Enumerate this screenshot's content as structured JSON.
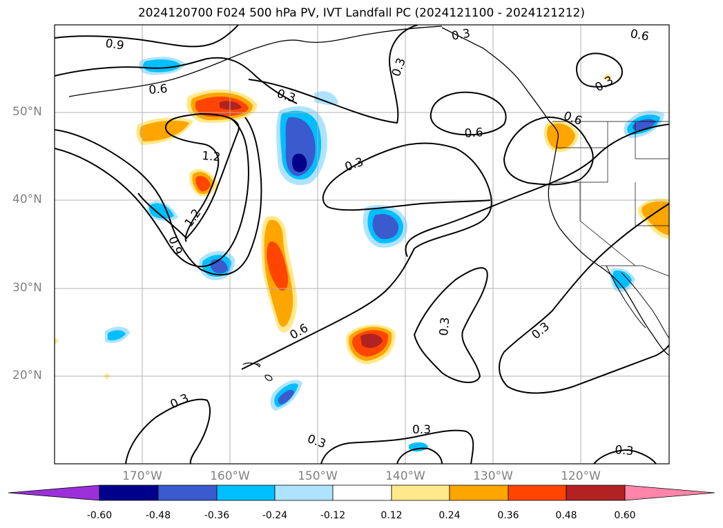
{
  "title": "2024120700 F024 500 hPa PV, IVT Landfall PC (2024121100 - 2024121212)",
  "map": {
    "projection": "lat-lon",
    "lat_range": [
      10,
      60
    ],
    "lon_range": [
      -180,
      -110
    ],
    "gridlines": true,
    "lat_ticks": [
      "50°N",
      "40°N",
      "30°N",
      "20°N"
    ],
    "lon_ticks": [
      "170°W",
      "160°W",
      "150°W",
      "140°W",
      "130°W",
      "120°W"
    ],
    "contour_labels": [
      "0.9",
      "0.6",
      "0.3",
      "1.2",
      "1.2",
      "0.9",
      "0.3",
      "0.6",
      "0.3",
      "0.6",
      "0.3",
      "0.3",
      "0.3",
      "0.3",
      "0.3",
      "0.3",
      "0.6",
      "0.3",
      "0.6",
      "0.3"
    ],
    "colors": {
      "contour": "#000000",
      "grid": "#b0b0b0",
      "coastline": "#000000"
    }
  },
  "colorbar": {
    "levels": [
      "-0.60",
      "-0.48",
      "-0.36",
      "-0.24",
      "-0.12",
      "0.12",
      "0.24",
      "0.36",
      "0.48",
      "0.60"
    ],
    "colors": [
      "#9b30d9",
      "#00008b",
      "#3a5acd",
      "#00bfff",
      "#aee3ff",
      "#ffffff",
      "#ffe98a",
      "#ffa500",
      "#ff4500",
      "#b22222",
      "#ff85aa"
    ],
    "extend": "both"
  }
}
